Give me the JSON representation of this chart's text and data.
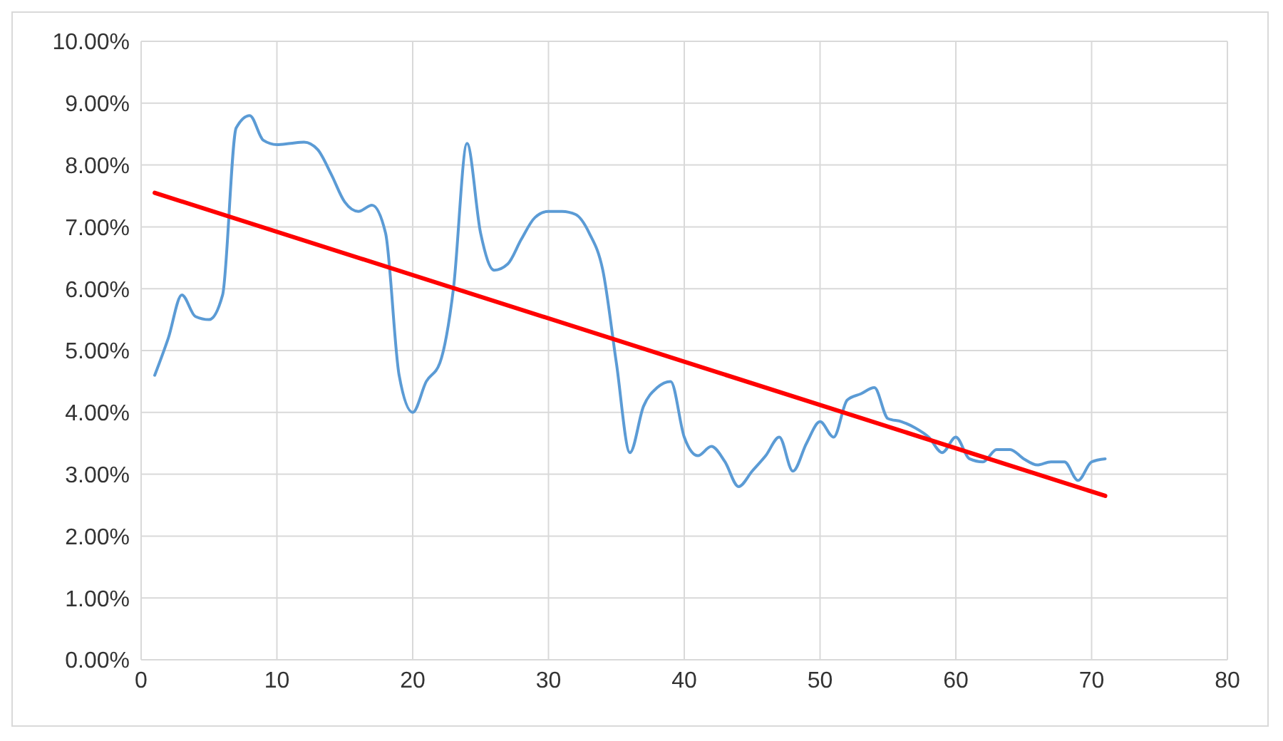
{
  "chart_data": {
    "type": "line",
    "x": [
      1,
      2,
      3,
      4,
      5,
      6,
      7,
      8,
      9,
      10,
      11,
      12,
      13,
      14,
      15,
      16,
      17,
      18,
      19,
      20,
      21,
      22,
      23,
      24,
      25,
      26,
      27,
      28,
      29,
      30,
      31,
      32,
      33,
      34,
      35,
      36,
      37,
      38,
      39,
      40,
      41,
      42,
      43,
      44,
      45,
      46,
      47,
      48,
      49,
      50,
      51,
      52,
      53,
      54,
      55,
      56,
      57,
      58,
      59,
      60,
      61,
      62,
      63,
      64,
      65,
      66,
      67,
      68,
      69,
      70,
      71
    ],
    "series": [
      {
        "color": "#5b9bd5",
        "values": [
          4.6,
          5.2,
          5.9,
          5.55,
          5.5,
          5.9,
          8.6,
          8.8,
          8.4,
          8.33,
          8.35,
          8.37,
          8.25,
          7.85,
          7.4,
          7.25,
          7.35,
          6.9,
          4.6,
          4.0,
          4.5,
          4.8,
          6.0,
          8.35,
          6.9,
          6.3,
          6.4,
          6.8,
          7.15,
          7.25,
          7.25,
          7.2,
          6.9,
          6.3,
          4.8,
          3.35,
          4.1,
          4.4,
          4.5,
          3.6,
          3.3,
          3.45,
          3.2,
          2.8,
          3.05,
          3.3,
          3.6,
          3.05,
          3.5,
          3.85,
          3.6,
          4.2,
          4.3,
          4.4,
          3.9,
          3.85,
          3.75,
          3.6,
          3.35,
          3.6,
          3.25,
          3.2,
          3.4,
          3.4,
          3.25,
          3.15,
          3.2,
          3.2,
          2.9,
          3.2,
          3.25
        ]
      },
      {
        "type": "line",
        "color": "#ff0000",
        "x": [
          1,
          71
        ],
        "values": [
          7.55,
          2.65
        ]
      }
    ],
    "xlim": [
      0,
      80
    ],
    "xticks": [
      0,
      10,
      20,
      30,
      40,
      50,
      60,
      70,
      80
    ],
    "ylim": [
      0,
      10
    ],
    "yticks": [
      {
        "value": 0,
        "label": "0.00%"
      },
      {
        "value": 1,
        "label": "1.00%"
      },
      {
        "value": 2,
        "label": "2.00%"
      },
      {
        "value": 3,
        "label": "3.00%"
      },
      {
        "value": 4,
        "label": "4.00%"
      },
      {
        "value": 5,
        "label": "5.00%"
      },
      {
        "value": 6,
        "label": "6.00%"
      },
      {
        "value": 7,
        "label": "7.00%"
      },
      {
        "value": 8,
        "label": "8.00%"
      },
      {
        "value": 9,
        "label": "9.00%"
      },
      {
        "value": 10,
        "label": "10.00%"
      }
    ],
    "grid": true
  }
}
